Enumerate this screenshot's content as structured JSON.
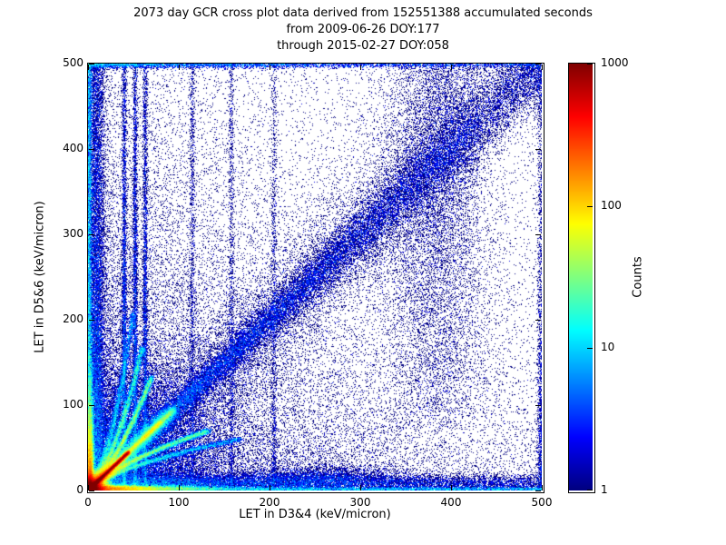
{
  "chart_data": {
    "type": "heatmap",
    "title_lines": [
      "2073 day GCR cross plot data derived from 152551388 accumulated seconds",
      "from 2009-06-26 DOY:177",
      "through 2015-02-27 DOY:058"
    ],
    "xlabel": "LET in D3&4 (keV/micron)",
    "ylabel": "LET in D5&6 (keV/micron)",
    "xlim": [
      0,
      500
    ],
    "ylim": [
      0,
      500
    ],
    "x_ticks": [
      0,
      100,
      200,
      300,
      400,
      500
    ],
    "y_ticks": [
      0,
      100,
      200,
      300,
      400,
      500
    ],
    "grid": false,
    "colorbar": {
      "label": "Counts",
      "scale": "log",
      "vmin": 1,
      "vmax": 1000,
      "ticks": [
        1,
        10,
        100,
        1000
      ],
      "colormap": "jet"
    },
    "background": "#ffffff",
    "point_color_min": "#00007f",
    "point_color_max": "#7f0000",
    "features": [
      {
        "kind": "uniform",
        "n": 7000,
        "w": 1,
        "x0": 0,
        "x1": 500,
        "y0": 0,
        "y1": 500
      },
      {
        "kind": "expxy",
        "n": 20000,
        "w": 1,
        "sx": 150,
        "sy": 150
      },
      {
        "kind": "expxy",
        "n": 7000,
        "w": 1,
        "sx": 380,
        "sy": 70
      },
      {
        "kind": "expxy",
        "n": 7000,
        "w": 1,
        "sx": 70,
        "sy": 380
      },
      {
        "kind": "diag",
        "n": 30000,
        "w": 1,
        "xmax": 500,
        "xpow": 1.3,
        "s0": 4,
        "s1": 26
      },
      {
        "kind": "diag",
        "n": 12000,
        "w": 1,
        "xmax": 430,
        "xpow": 1.0,
        "s0": 28,
        "s1": 55
      },
      {
        "kind": "streak",
        "n": 40000,
        "w": 6,
        "x0": 1,
        "y0": 1,
        "x1": 45,
        "y1": 45,
        "sigma": 1.2,
        "tpow": 2.0
      },
      {
        "kind": "streak",
        "n": 12000,
        "w": 1,
        "x0": 30,
        "y0": 30,
        "x1": 80,
        "y1": 80,
        "sigma": 1.5,
        "tpow": 1.2
      },
      {
        "kind": "streak",
        "n": 6000,
        "w": 1,
        "x0": 60,
        "y0": 60,
        "x1": 95,
        "y1": 95,
        "sigma": 2,
        "tpow": 1
      },
      {
        "kind": "streak",
        "n": 20000,
        "w": 2,
        "x0": 0,
        "y0": 0,
        "x1": 90,
        "y1": 90,
        "sigma": 5,
        "tpow": 2.2
      },
      {
        "kind": "blob",
        "n": 22000,
        "w": 6,
        "cx": 4,
        "cy": 4,
        "sx": 7,
        "sy": 7
      },
      {
        "kind": "hline",
        "n": 14000,
        "w": 4,
        "cy": 2.5,
        "sy": 1.8,
        "xscale": 35,
        "xuni": 0.05
      },
      {
        "kind": "vline",
        "n": 14000,
        "w": 4,
        "cx": 2.5,
        "sx": 1.8,
        "yscale": 35,
        "yuni": 0.05
      },
      {
        "kind": "hline",
        "n": 15000,
        "w": 1,
        "cy": 9,
        "sy": 5,
        "xscale": 260,
        "xuni": 0.35
      },
      {
        "kind": "vline",
        "n": 15000,
        "w": 1,
        "cx": 9,
        "sx": 5,
        "yscale": 260,
        "yuni": 0.35
      },
      {
        "kind": "vline",
        "n": 6000,
        "w": 2,
        "cx": 1.5,
        "sx": 1.2,
        "yscale": 400,
        "yuni": 0.5
      },
      {
        "kind": "hline",
        "n": 6000,
        "w": 2,
        "cy": 1.5,
        "sy": 1.2,
        "xscale": 400,
        "xuni": 0.5
      },
      {
        "kind": "branch",
        "n": 9000,
        "w": 3,
        "len": 70,
        "k": 0.9,
        "sigma": 1.6,
        "swap": false
      },
      {
        "kind": "branch",
        "n": 7000,
        "w": 3,
        "len": 60,
        "k": 1.8,
        "sigma": 1.6,
        "swap": false
      },
      {
        "kind": "branch",
        "n": 5500,
        "w": 2,
        "len": 50,
        "k": 3.2,
        "sigma": 1.8,
        "swap": false
      },
      {
        "kind": "branch",
        "n": 9000,
        "w": 3,
        "len": 70,
        "k": 0.9,
        "sigma": 1.6,
        "swap": true
      },
      {
        "kind": "branch",
        "n": 6000,
        "w": 2,
        "len": 60,
        "k": 1.8,
        "sigma": 1.6,
        "swap": true
      },
      {
        "kind": "vline",
        "n": 5000,
        "w": 1,
        "cx": 40,
        "sx": 1.3,
        "yscale": 200,
        "yuni": 0.25
      },
      {
        "kind": "vline",
        "n": 4500,
        "w": 1,
        "cx": 52,
        "sx": 1.3,
        "yscale": 230,
        "yuni": 0.25
      },
      {
        "kind": "vline",
        "n": 4000,
        "w": 1,
        "cx": 63,
        "sx": 1.3,
        "yscale": 260,
        "yuni": 0.25
      },
      {
        "kind": "vline",
        "n": 1500,
        "w": 1,
        "cx": 115,
        "sx": 1.6,
        "yscale": 300,
        "yuni": 0.6
      },
      {
        "kind": "vline",
        "n": 1300,
        "w": 1,
        "cx": 158,
        "sx": 1.6,
        "yscale": 300,
        "yuni": 0.6
      },
      {
        "kind": "vline",
        "n": 1100,
        "w": 1,
        "cx": 205,
        "sx": 1.6,
        "yscale": 300,
        "yuni": 0.6
      },
      {
        "kind": "vband",
        "n": 9000,
        "w": 1,
        "cx": 385,
        "sx": 30,
        "ymin": 70,
        "ymax": 500,
        "ypow": 0.75
      },
      {
        "kind": "blob",
        "n": 2500,
        "w": 1,
        "cx": 255,
        "cy": 16,
        "sx": 45,
        "sy": 7
      },
      {
        "kind": "blob",
        "n": 14000,
        "w": 1,
        "cx": 45,
        "cy": 45,
        "sx": 50,
        "sy": 50
      },
      {
        "kind": "hline",
        "n": 3500,
        "w": 2,
        "cy": 498.5,
        "sy": 2,
        "xscale": 160,
        "xuni": 0.35
      },
      {
        "kind": "vline",
        "n": 1500,
        "w": 1,
        "cx": 498.5,
        "sx": 2,
        "yscale": 160,
        "yuni": 0.5
      }
    ]
  }
}
